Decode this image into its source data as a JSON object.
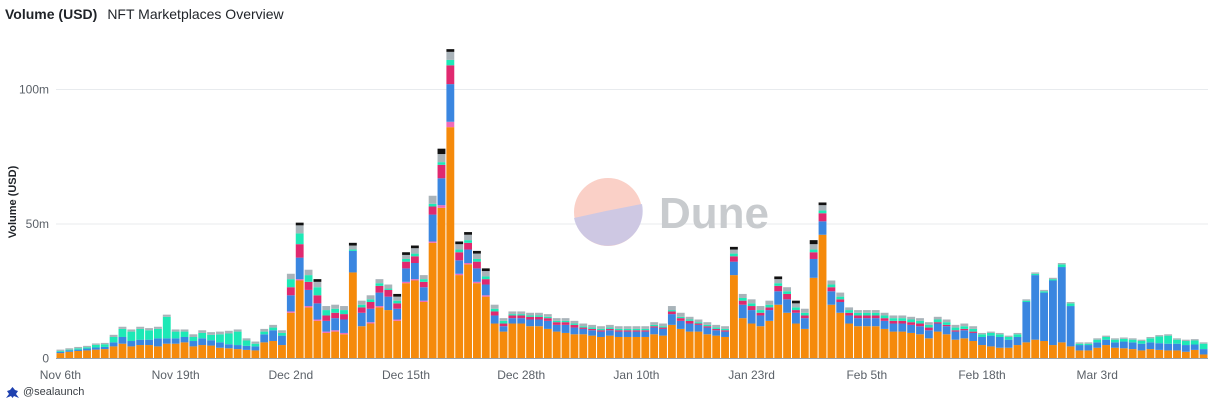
{
  "header": {
    "title": "Volume (USD)",
    "subtitle": "NFT Marketplaces Overview"
  },
  "watermark": {
    "text": "Dune"
  },
  "footer": {
    "user": "@sealaunch"
  },
  "colors": {
    "orange": "#f58a0b",
    "blue": "#3a86e0",
    "magenta": "#e0296f",
    "teal": "#1de9b6",
    "gray": "#a9b3b9",
    "black": "#111111",
    "pink": "#f06ab8",
    "grid": "#e8ebee",
    "axis": "#5b6168"
  },
  "chart_data": {
    "type": "bar",
    "stacked": true,
    "ylabel": "Volume (USD)",
    "yticks": [
      {
        "value": 0,
        "label": "0"
      },
      {
        "value": 50,
        "label": "50m"
      },
      {
        "value": 100,
        "label": "100m"
      }
    ],
    "ylim": [
      0,
      122
    ],
    "y_unit": "millions USD",
    "grid": true,
    "start_date": "2021-11-06",
    "xticks": [
      {
        "index": 0,
        "label": "Nov 6th"
      },
      {
        "index": 13,
        "label": "Nov 19th"
      },
      {
        "index": 26,
        "label": "Dec 2nd"
      },
      {
        "index": 39,
        "label": "Dec 15th"
      },
      {
        "index": 52,
        "label": "Dec 28th"
      },
      {
        "index": 65,
        "label": "Jan 10th"
      },
      {
        "index": 78,
        "label": "Jan 23rd"
      },
      {
        "index": 91,
        "label": "Feb 5th"
      },
      {
        "index": 104,
        "label": "Feb 18th"
      },
      {
        "index": 117,
        "label": "Mar 3rd"
      }
    ],
    "series": [
      {
        "color": "orange",
        "values": [
          2,
          2.5,
          2.8,
          3,
          3.3,
          3.5,
          4.5,
          5.5,
          4.5,
          5,
          5,
          4.5,
          5.5,
          5.5,
          6,
          4.5,
          5,
          4.8,
          4,
          3.8,
          3.5,
          3.2,
          3,
          6,
          6.5,
          5,
          17,
          29,
          19,
          14,
          9.5,
          10,
          9,
          32,
          12,
          13,
          19,
          18,
          14,
          28,
          29,
          21,
          43,
          56,
          86,
          31,
          35,
          28,
          23,
          13,
          10,
          13,
          13,
          12,
          12,
          11,
          10,
          9.5,
          9,
          9,
          8.5,
          8,
          8.5,
          8,
          8,
          8,
          8,
          9,
          8.5,
          12.5,
          11,
          10,
          10,
          9,
          8.5,
          8,
          31,
          15,
          13,
          12,
          14,
          20,
          17,
          13,
          11,
          30,
          46,
          20,
          17,
          13,
          12,
          12,
          12,
          11,
          10,
          10,
          9.5,
          9,
          7.5,
          10,
          9,
          7,
          7.5,
          6.5,
          5,
          4.5,
          4,
          4,
          5,
          6,
          7,
          6.5,
          5,
          6,
          4.5,
          3,
          3,
          4,
          5,
          4,
          3.8,
          3.5,
          3,
          3.5,
          3.2,
          3,
          3,
          2.5,
          3.2,
          1.5
        ]
      },
      {
        "color": "pink",
        "values": [
          0,
          0,
          0,
          0,
          0,
          0,
          0,
          0,
          0,
          0,
          0,
          0,
          0,
          0,
          0,
          0,
          0,
          0,
          0,
          0,
          0,
          0,
          0,
          0,
          0,
          0,
          0.5,
          0.5,
          0.5,
          0.5,
          0.5,
          0.5,
          0.5,
          0,
          0,
          0.5,
          0.5,
          0,
          0.5,
          0.5,
          0.5,
          0.5,
          0.5,
          1,
          2,
          0.5,
          0.5,
          0.5,
          0.5,
          0,
          0,
          0,
          0,
          0,
          0,
          0,
          0,
          0,
          0,
          0,
          0,
          0,
          0,
          0,
          0,
          0,
          0,
          0,
          0,
          0,
          0,
          0,
          0,
          0,
          0,
          0,
          0,
          0,
          0,
          0,
          0,
          0,
          0,
          0,
          0,
          0,
          0,
          0,
          0,
          0,
          0,
          0,
          0,
          0,
          0,
          0,
          0,
          0,
          0,
          0,
          0,
          0,
          0,
          0,
          0,
          0,
          0,
          0,
          0,
          0,
          0,
          0,
          0,
          0,
          0,
          0,
          0,
          0,
          0,
          0,
          0,
          0,
          0,
          0,
          0,
          0,
          0,
          0,
          0,
          0,
          0,
          0
        ]
      },
      {
        "color": "blue",
        "values": [
          0.5,
          0.5,
          0.5,
          0.7,
          0.8,
          0.8,
          1.5,
          2.5,
          2,
          2,
          2,
          3,
          2,
          2,
          2,
          2,
          2.5,
          2,
          2,
          1.5,
          1.5,
          1.5,
          1.5,
          3,
          4,
          3.5,
          6,
          8,
          6,
          6,
          4,
          4.5,
          5,
          8,
          5,
          5,
          5,
          5,
          4,
          5,
          6,
          5,
          10,
          10,
          14,
          5,
          5,
          5,
          4,
          3,
          2,
          2,
          2,
          2.5,
          2.5,
          3,
          2.5,
          3,
          2.5,
          2,
          2,
          2,
          2,
          2,
          2,
          2,
          2,
          2.5,
          2.5,
          4,
          3,
          3,
          2.5,
          2.5,
          2,
          2,
          5,
          5,
          5,
          4,
          4,
          5,
          5,
          4,
          4,
          7,
          5,
          5,
          4,
          3,
          3,
          3,
          3,
          3,
          3,
          3,
          3,
          3,
          3,
          3,
          3,
          3,
          3,
          3,
          3,
          4,
          4,
          3,
          3,
          15,
          24,
          18,
          24,
          28,
          15,
          2,
          2,
          2,
          2,
          2,
          2.5,
          2.5,
          2.5,
          2.5,
          2.5,
          2.5,
          2.5,
          2.5,
          2,
          2,
          2
        ]
      },
      {
        "color": "magenta",
        "values": [
          0,
          0,
          0,
          0,
          0,
          0,
          0,
          0,
          0,
          0,
          0,
          0,
          0,
          0,
          0,
          0,
          0,
          0,
          0,
          0,
          0,
          0,
          0,
          0,
          0,
          0,
          3,
          5,
          3,
          3,
          2,
          2,
          2,
          0,
          2,
          2.5,
          2.5,
          2.5,
          2,
          2.5,
          2.5,
          2,
          3,
          5,
          7,
          3,
          2.5,
          2.5,
          2,
          1.5,
          1,
          1,
          1,
          1,
          1,
          1,
          1,
          1,
          1,
          0.5,
          0.5,
          0.5,
          0.5,
          0.5,
          0.5,
          0.5,
          0.5,
          0.5,
          0.5,
          1,
          1,
          1,
          0.5,
          0.5,
          0.5,
          0.5,
          2,
          1.5,
          1.5,
          1,
          1,
          2,
          2,
          1,
          1,
          2.5,
          3,
          1.5,
          1,
          1,
          1,
          1,
          1,
          1,
          1,
          1,
          1,
          1,
          1,
          0.5,
          0.5,
          0.5,
          0.5,
          0.5,
          0,
          0,
          0,
          0,
          0,
          0,
          0,
          0,
          0,
          0,
          0,
          0,
          0,
          0,
          0,
          0,
          0,
          0,
          0,
          0,
          0,
          0,
          0,
          0,
          0,
          0
        ]
      },
      {
        "color": "teal",
        "values": [
          0.3,
          0.3,
          0.5,
          0.5,
          1,
          1,
          2,
          3,
          3.5,
          4,
          3.5,
          3.5,
          8,
          2.5,
          2,
          1.5,
          2,
          2,
          3,
          4,
          5,
          2,
          1,
          1,
          1,
          1,
          3,
          4,
          2.5,
          3,
          2,
          1.5,
          1.5,
          0.5,
          1,
          1,
          1,
          0.5,
          1,
          1,
          1,
          1,
          1,
          1,
          2,
          1,
          1,
          1,
          1,
          1,
          1,
          0.5,
          0.5,
          0.5,
          0.5,
          0.5,
          0.5,
          0.5,
          0.5,
          0.5,
          0.5,
          0.5,
          0.5,
          0.5,
          0.5,
          0.5,
          0.5,
          0.5,
          0.5,
          0.5,
          0.5,
          0.5,
          0.5,
          0.5,
          0.5,
          0.5,
          1,
          1,
          1,
          1,
          1,
          1,
          1,
          1,
          1,
          1,
          1,
          1,
          1,
          1,
          1,
          1,
          1,
          1,
          1,
          1,
          1,
          1,
          1,
          1,
          1,
          1,
          1,
          1,
          1,
          1,
          1,
          1,
          1,
          0.5,
          0.5,
          0.5,
          0.5,
          1,
          1,
          0.5,
          0.5,
          1,
          1,
          1,
          1,
          1,
          1,
          1.5,
          2.5,
          3,
          1.5,
          1.5,
          1.5,
          2
        ]
      },
      {
        "color": "gray",
        "values": [
          0.5,
          0.5,
          0.5,
          0.5,
          0.5,
          0.5,
          0.8,
          0.8,
          0.8,
          0.8,
          0.8,
          0.8,
          0.8,
          0.8,
          0.8,
          1,
          1,
          1,
          1,
          1,
          0.8,
          0.8,
          0.8,
          1,
          1,
          1,
          2,
          3,
          2,
          2,
          1.5,
          1.5,
          1.5,
          1.5,
          1.5,
          1.5,
          1.5,
          1.5,
          1.5,
          1.5,
          2,
          1.5,
          3,
          3,
          3,
          2,
          2,
          2,
          2,
          1.5,
          1,
          1,
          1,
          1,
          1,
          1,
          1,
          1,
          1,
          1,
          1,
          1,
          1,
          1,
          1,
          1,
          1,
          1,
          1,
          1.5,
          1.5,
          1,
          1,
          1,
          1,
          1,
          1.5,
          1.5,
          1.5,
          1.5,
          1.5,
          1.5,
          1.5,
          1.5,
          1.5,
          2,
          2,
          1.5,
          1.5,
          1,
          1,
          1,
          1,
          1,
          1,
          1,
          1,
          1,
          1,
          1,
          1,
          1,
          1,
          1,
          0.5,
          0.5,
          0.5,
          0.5,
          0.5,
          0.5,
          0.5,
          0.5,
          0.5,
          0.5,
          0.5,
          0.5,
          0.5,
          0.5,
          0.5,
          0.5,
          0.5,
          0.5,
          0.5,
          0.5,
          0.5,
          0.5,
          0.5,
          0.5,
          0.5,
          0.5
        ]
      },
      {
        "color": "black",
        "values": [
          0,
          0,
          0,
          0,
          0,
          0,
          0,
          0,
          0,
          0,
          0,
          0,
          0,
          0,
          0,
          0,
          0,
          0,
          0,
          0,
          0,
          0,
          0,
          0,
          0,
          0,
          0,
          1,
          0,
          1,
          0,
          0,
          0,
          1,
          0,
          0,
          0,
          0,
          1,
          1,
          1,
          0,
          0,
          2,
          1,
          1,
          1,
          1,
          1,
          0,
          0,
          0,
          0,
          0,
          0,
          0,
          0,
          0,
          0,
          0,
          0,
          0,
          0,
          0,
          0,
          0,
          0,
          0,
          0,
          0,
          0,
          0,
          0,
          0,
          0,
          0,
          1,
          0,
          0,
          0,
          0,
          1,
          0,
          1,
          0,
          1.5,
          1,
          0,
          0,
          0,
          0,
          0,
          0,
          0,
          0,
          0,
          0,
          0,
          0,
          0,
          0,
          0,
          0,
          0,
          0,
          0,
          0,
          0,
          0,
          0,
          0,
          0,
          0,
          0,
          0,
          0,
          0,
          0,
          0,
          0,
          0,
          0,
          0,
          0,
          0,
          0,
          0,
          0,
          0,
          0,
          0
        ]
      }
    ]
  }
}
